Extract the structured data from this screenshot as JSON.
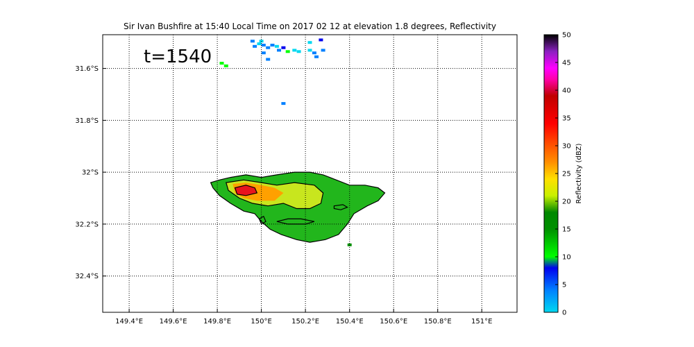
{
  "chart_data": {
    "type": "heatmap",
    "title": "Sir Ivan Bushfire at 15:40 Local Time on 2017 02 12 at elevation 1.8 degrees, Reflectivity",
    "annotation": "t=1540",
    "xlabel": "",
    "ylabel": "",
    "x_ticks": [
      {
        "value": 149.4,
        "label": "149.4°E"
      },
      {
        "value": 149.6,
        "label": "149.6°E"
      },
      {
        "value": 149.8,
        "label": "149.8°E"
      },
      {
        "value": 150.0,
        "label": "150°E"
      },
      {
        "value": 150.2,
        "label": "150.2°E"
      },
      {
        "value": 150.4,
        "label": "150.4°E"
      },
      {
        "value": 150.6,
        "label": "150.6°E"
      },
      {
        "value": 150.8,
        "label": "150.8°E"
      },
      {
        "value": 151.0,
        "label": "151°E"
      }
    ],
    "y_ticks": [
      {
        "value": -31.6,
        "label": "31.6°S"
      },
      {
        "value": -31.8,
        "label": "31.8°S"
      },
      {
        "value": -32.0,
        "label": "32°S"
      },
      {
        "value": -32.2,
        "label": "32.2°S"
      },
      {
        "value": -32.4,
        "label": "32.4°S"
      }
    ],
    "xlim": [
      149.28,
      151.16
    ],
    "ylim": [
      -32.54,
      -31.47
    ],
    "grid": true,
    "colorbar": {
      "label": "Reflectivity (dBZ)",
      "min": 0,
      "max": 50,
      "ticks": [
        0,
        5,
        10,
        15,
        20,
        25,
        30,
        35,
        40,
        45,
        50
      ],
      "stops": [
        {
          "v": 0,
          "color": "#00d8f0"
        },
        {
          "v": 4,
          "color": "#0080ff"
        },
        {
          "v": 8,
          "color": "#0000ee"
        },
        {
          "v": 10,
          "color": "#00ff00"
        },
        {
          "v": 15,
          "color": "#009000"
        },
        {
          "v": 18,
          "color": "#008800"
        },
        {
          "v": 21,
          "color": "#c8f000"
        },
        {
          "v": 24,
          "color": "#ffe000"
        },
        {
          "v": 27,
          "color": "#ff9000"
        },
        {
          "v": 31,
          "color": "#ff4000"
        },
        {
          "v": 34,
          "color": "#ff0000"
        },
        {
          "v": 39,
          "color": "#c00000"
        },
        {
          "v": 42,
          "color": "#ff00aa"
        },
        {
          "v": 44,
          "color": "#ff00ff"
        },
        {
          "v": 47,
          "color": "#8a20c0"
        },
        {
          "v": 50,
          "color": "#000000"
        }
      ]
    },
    "regions": [
      {
        "name": "plume-outer",
        "dbz": 16,
        "color": "#22b61c",
        "polygon": [
          [
            149.77,
            -32.04
          ],
          [
            149.81,
            -32.03
          ],
          [
            149.86,
            -32.02
          ],
          [
            149.93,
            -32.01
          ],
          [
            150.0,
            -32.02
          ],
          [
            150.07,
            -32.01
          ],
          [
            150.15,
            -32.0
          ],
          [
            150.22,
            -32.0
          ],
          [
            150.28,
            -32.01
          ],
          [
            150.34,
            -32.03
          ],
          [
            150.4,
            -32.05
          ],
          [
            150.47,
            -32.05
          ],
          [
            150.53,
            -32.06
          ],
          [
            150.56,
            -32.08
          ],
          [
            150.53,
            -32.11
          ],
          [
            150.48,
            -32.13
          ],
          [
            150.42,
            -32.16
          ],
          [
            150.39,
            -32.2
          ],
          [
            150.35,
            -32.24
          ],
          [
            150.29,
            -32.26
          ],
          [
            150.22,
            -32.27
          ],
          [
            150.16,
            -32.26
          ],
          [
            150.09,
            -32.24
          ],
          [
            150.04,
            -32.22
          ],
          [
            150.0,
            -32.19
          ],
          [
            149.97,
            -32.16
          ],
          [
            149.92,
            -32.15
          ],
          [
            149.86,
            -32.12
          ],
          [
            149.81,
            -32.09
          ],
          [
            149.78,
            -32.06
          ]
        ]
      },
      {
        "name": "plume-mid",
        "dbz": 22,
        "color": "#c8e61e",
        "polygon": [
          [
            149.84,
            -32.04
          ],
          [
            149.92,
            -32.03
          ],
          [
            150.0,
            -32.04
          ],
          [
            150.07,
            -32.05
          ],
          [
            150.15,
            -32.04
          ],
          [
            150.24,
            -32.05
          ],
          [
            150.28,
            -32.08
          ],
          [
            150.27,
            -32.12
          ],
          [
            150.22,
            -32.14
          ],
          [
            150.16,
            -32.14
          ],
          [
            150.1,
            -32.12
          ],
          [
            150.03,
            -32.13
          ],
          [
            149.96,
            -32.12
          ],
          [
            149.9,
            -32.1
          ],
          [
            149.85,
            -32.07
          ]
        ]
      },
      {
        "name": "plume-core",
        "dbz": 27,
        "color": "#ffa000",
        "polygon": [
          [
            149.87,
            -32.045
          ],
          [
            149.93,
            -32.04
          ],
          [
            150.0,
            -32.05
          ],
          [
            150.06,
            -32.06
          ],
          [
            150.1,
            -32.08
          ],
          [
            150.06,
            -32.11
          ],
          [
            149.98,
            -32.11
          ],
          [
            149.92,
            -32.1
          ],
          [
            149.88,
            -32.08
          ]
        ]
      },
      {
        "name": "plume-max",
        "dbz": 36,
        "color": "#e8141e",
        "polygon": [
          [
            149.88,
            -32.06
          ],
          [
            149.93,
            -32.05
          ],
          [
            149.97,
            -32.06
          ],
          [
            149.98,
            -32.08
          ],
          [
            149.93,
            -32.09
          ],
          [
            149.89,
            -32.085
          ]
        ]
      }
    ],
    "contours": [
      {
        "name": "contour-outer",
        "points": [
          [
            149.77,
            -32.04
          ],
          [
            149.81,
            -32.03
          ],
          [
            149.86,
            -32.02
          ],
          [
            149.93,
            -32.01
          ],
          [
            150.0,
            -32.02
          ],
          [
            150.07,
            -32.01
          ],
          [
            150.15,
            -32.0
          ],
          [
            150.22,
            -32.0
          ],
          [
            150.28,
            -32.01
          ],
          [
            150.34,
            -32.03
          ],
          [
            150.4,
            -32.05
          ],
          [
            150.47,
            -32.05
          ],
          [
            150.53,
            -32.06
          ],
          [
            150.56,
            -32.08
          ],
          [
            150.53,
            -32.11
          ],
          [
            150.48,
            -32.13
          ],
          [
            150.42,
            -32.16
          ],
          [
            150.39,
            -32.2
          ],
          [
            150.35,
            -32.24
          ],
          [
            150.29,
            -32.26
          ],
          [
            150.22,
            -32.27
          ],
          [
            150.16,
            -32.26
          ],
          [
            150.09,
            -32.24
          ],
          [
            150.04,
            -32.22
          ],
          [
            150.0,
            -32.19
          ],
          [
            149.97,
            -32.16
          ],
          [
            149.92,
            -32.15
          ],
          [
            149.86,
            -32.12
          ],
          [
            149.81,
            -32.09
          ],
          [
            149.78,
            -32.06
          ]
        ]
      },
      {
        "name": "contour-mid",
        "points": [
          [
            149.84,
            -32.04
          ],
          [
            149.92,
            -32.03
          ],
          [
            150.0,
            -32.04
          ],
          [
            150.07,
            -32.05
          ],
          [
            150.15,
            -32.04
          ],
          [
            150.24,
            -32.05
          ],
          [
            150.28,
            -32.08
          ],
          [
            150.27,
            -32.12
          ],
          [
            150.22,
            -32.14
          ],
          [
            150.16,
            -32.14
          ],
          [
            150.1,
            -32.12
          ],
          [
            150.03,
            -32.13
          ],
          [
            149.96,
            -32.12
          ],
          [
            149.9,
            -32.1
          ],
          [
            149.85,
            -32.07
          ]
        ]
      },
      {
        "name": "contour-core",
        "points": [
          [
            149.88,
            -32.06
          ],
          [
            149.93,
            -32.05
          ],
          [
            149.97,
            -32.06
          ],
          [
            149.98,
            -32.08
          ],
          [
            149.93,
            -32.09
          ],
          [
            149.89,
            -32.085
          ]
        ]
      },
      {
        "name": "contour-hole-east",
        "points": [
          [
            150.33,
            -32.13
          ],
          [
            150.37,
            -32.125
          ],
          [
            150.39,
            -32.135
          ],
          [
            150.36,
            -32.145
          ],
          [
            150.33,
            -32.14
          ]
        ]
      },
      {
        "name": "contour-hole-south",
        "points": [
          [
            150.07,
            -32.19
          ],
          [
            150.12,
            -32.18
          ],
          [
            150.18,
            -32.18
          ],
          [
            150.24,
            -32.19
          ],
          [
            150.2,
            -32.2
          ],
          [
            150.12,
            -32.2
          ]
        ]
      },
      {
        "name": "contour-hole-west",
        "points": [
          [
            149.99,
            -32.18
          ],
          [
            150.01,
            -32.17
          ],
          [
            150.02,
            -32.19
          ],
          [
            150.0,
            -32.2
          ]
        ]
      }
    ],
    "scatter_echoes": [
      {
        "lon": 149.96,
        "lat": -31.495,
        "dbz": 8
      },
      {
        "lon": 149.97,
        "lat": -31.515,
        "dbz": 6
      },
      {
        "lon": 149.99,
        "lat": -31.505,
        "dbz": 3
      },
      {
        "lon": 150.0,
        "lat": -31.495,
        "dbz": 2
      },
      {
        "lon": 150.01,
        "lat": -31.51,
        "dbz": 5
      },
      {
        "lon": 150.03,
        "lat": -31.52,
        "dbz": 8
      },
      {
        "lon": 150.05,
        "lat": -31.51,
        "dbz": 7
      },
      {
        "lon": 150.07,
        "lat": -31.515,
        "dbz": 4
      },
      {
        "lon": 150.08,
        "lat": -31.53,
        "dbz": 6
      },
      {
        "lon": 150.1,
        "lat": -31.52,
        "dbz": 9
      },
      {
        "lon": 150.12,
        "lat": -31.535,
        "dbz": 11
      },
      {
        "lon": 150.15,
        "lat": -31.53,
        "dbz": 3
      },
      {
        "lon": 150.17,
        "lat": -31.535,
        "dbz": 2
      },
      {
        "lon": 150.22,
        "lat": -31.53,
        "dbz": 4
      },
      {
        "lon": 150.24,
        "lat": -31.54,
        "dbz": 7
      },
      {
        "lon": 150.25,
        "lat": -31.555,
        "dbz": 8
      },
      {
        "lon": 150.27,
        "lat": -31.49,
        "dbz": 9
      },
      {
        "lon": 150.28,
        "lat": -31.53,
        "dbz": 5
      },
      {
        "lon": 150.01,
        "lat": -31.54,
        "dbz": 6
      },
      {
        "lon": 150.03,
        "lat": -31.565,
        "dbz": 8
      },
      {
        "lon": 150.22,
        "lat": -31.5,
        "dbz": 3
      },
      {
        "lon": 150.1,
        "lat": -31.735,
        "dbz": 7
      },
      {
        "lon": 149.82,
        "lat": -31.58,
        "dbz": 12
      },
      {
        "lon": 149.84,
        "lat": -31.59,
        "dbz": 13
      },
      {
        "lon": 150.4,
        "lat": -32.28,
        "dbz": 16
      }
    ]
  }
}
